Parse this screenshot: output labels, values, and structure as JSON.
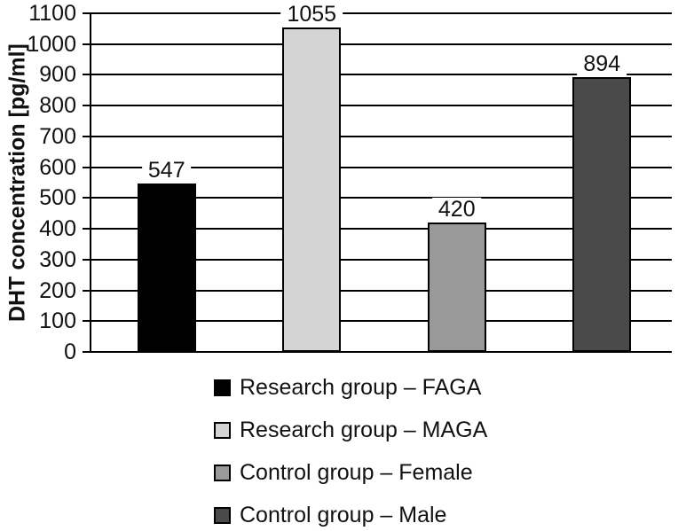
{
  "figure": {
    "background_color": "#ffffff",
    "text_color": "#111111",
    "line_color": "#000000"
  },
  "chart_data": {
    "type": "bar",
    "categories": [
      "Research group – FAGA",
      "Research group – MAGA",
      "Control group – Female",
      "Control group – Male"
    ],
    "values": [
      547,
      1055,
      420,
      894
    ],
    "data_labels": [
      "547",
      "1055",
      "420",
      "894"
    ],
    "bar_colors": [
      "#000000",
      "#d4d4d4",
      "#999999",
      "#4a4a4a"
    ],
    "bar_border_color": "#000000",
    "title": "",
    "xlabel": "",
    "ylabel": "DHT concentration [pg/ml]",
    "ylim": [
      0,
      1100
    ],
    "yticks": [
      0,
      100,
      200,
      300,
      400,
      500,
      600,
      700,
      800,
      900,
      1000,
      1100
    ],
    "grid": true,
    "gridline_color": "#000000",
    "legend_position": "bottom",
    "legend": [
      {
        "label": "Research group – FAGA",
        "color": "#000000"
      },
      {
        "label": "Research group – MAGA",
        "color": "#d4d4d4"
      },
      {
        "label": "Control group – Female",
        "color": "#999999"
      },
      {
        "label": "Control group – Male",
        "color": "#4a4a4a"
      }
    ]
  }
}
